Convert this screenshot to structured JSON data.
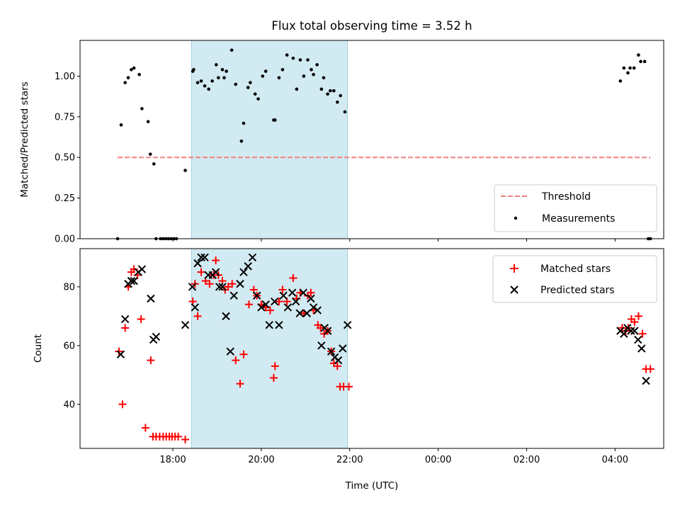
{
  "chart_data": {
    "type": "scatter",
    "title": "Flux total observing time = 3.52 h",
    "xlabel": "Time (UTC)",
    "x_tick_labels": [
      "18:00",
      "20:00",
      "22:00",
      "00:00",
      "02:00",
      "04:00"
    ],
    "x_ticks_hours": [
      18,
      20,
      22,
      24,
      26,
      28
    ],
    "x_unit": "hours UTC",
    "xlim": [
      15.9,
      29.1
    ],
    "shaded_span": [
      18.42,
      21.95
    ],
    "shade_color": "#add8e6",
    "panels": [
      {
        "ylabel": "Matched/Predicted stars",
        "ylim": [
          0,
          1.22
        ],
        "y_ticks": [
          0.0,
          0.25,
          0.5,
          0.75,
          1.0
        ],
        "y_tick_labels": [
          "0.00",
          "0.25",
          "0.50",
          "0.75",
          "1.00"
        ],
        "legend_loc": "lower-right",
        "series": [
          {
            "name": "Threshold",
            "kind": "line",
            "style": "dashed",
            "color": "#f08080",
            "x": [
              16.75,
              28.8
            ],
            "y": [
              0.5,
              0.5
            ]
          },
          {
            "name": "Measurements",
            "kind": "dot",
            "color": "#000000",
            "x": [
              16.75,
              16.83,
              16.92,
              16.99,
              17.06,
              17.12,
              17.24,
              17.3,
              17.44,
              17.49,
              17.57,
              17.62,
              17.72,
              17.78,
              17.84,
              17.9,
              17.96,
              18.02,
              18.08,
              18.28,
              18.45,
              18.47,
              18.56,
              18.64,
              18.72,
              18.81,
              18.89,
              18.98,
              19.03,
              19.12,
              19.16,
              19.21,
              19.33,
              19.42,
              19.55,
              19.6,
              19.7,
              19.75,
              19.86,
              19.93,
              20.03,
              20.1,
              20.28,
              20.31,
              20.4,
              20.48,
              20.58,
              20.72,
              20.8,
              20.88,
              20.96,
              21.05,
              21.13,
              21.18,
              21.26,
              21.36,
              21.41,
              21.5,
              21.56,
              21.64,
              21.72,
              21.79,
              21.89,
              28.12,
              28.2,
              28.29,
              28.34,
              28.43,
              28.53,
              28.58,
              28.67,
              28.75,
              28.8
            ],
            "y": [
              0.0,
              0.7,
              0.96,
              0.99,
              1.04,
              1.05,
              1.01,
              0.8,
              0.72,
              0.52,
              0.46,
              0.0,
              0.0,
              0.0,
              0.0,
              0.0,
              0.0,
              0.0,
              0.0,
              0.42,
              1.03,
              1.04,
              0.96,
              0.97,
              0.94,
              0.92,
              0.97,
              1.07,
              0.99,
              1.04,
              0.99,
              1.03,
              1.16,
              0.95,
              0.6,
              0.71,
              0.93,
              0.96,
              0.89,
              0.86,
              1.0,
              1.03,
              0.73,
              0.73,
              0.99,
              1.04,
              1.13,
              1.11,
              0.92,
              1.1,
              1.0,
              1.1,
              1.04,
              1.01,
              1.07,
              0.92,
              0.99,
              0.89,
              0.91,
              0.91,
              0.84,
              0.88,
              0.78,
              0.97,
              1.05,
              1.02,
              1.05,
              1.05,
              1.13,
              1.09,
              1.09,
              0.0,
              0.0
            ]
          }
        ]
      },
      {
        "ylabel": "Count",
        "ylim": [
          25,
          93
        ],
        "y_ticks": [
          40,
          60,
          80
        ],
        "y_tick_labels": [
          "40",
          "60",
          "80"
        ],
        "legend_loc": "top-right",
        "series": [
          {
            "name": "Matched stars",
            "kind": "plus",
            "color": "#ff0000",
            "x": [
              16.78,
              16.86,
              16.92,
              16.99,
              17.06,
              17.12,
              17.2,
              17.28,
              17.38,
              17.5,
              17.55,
              17.62,
              17.7,
              17.78,
              17.85,
              17.92,
              17.98,
              18.05,
              18.12,
              18.28,
              18.45,
              18.5,
              18.56,
              18.64,
              18.74,
              18.83,
              18.92,
              18.97,
              19.03,
              19.12,
              19.18,
              19.25,
              19.34,
              19.42,
              19.52,
              19.6,
              19.72,
              19.83,
              19.9,
              20.0,
              20.1,
              20.2,
              20.28,
              20.31,
              20.4,
              20.48,
              20.58,
              20.72,
              20.8,
              20.88,
              20.96,
              21.05,
              21.12,
              21.18,
              21.28,
              21.34,
              21.42,
              21.5,
              21.58,
              21.64,
              21.72,
              21.78,
              21.86,
              21.98,
              28.16,
              28.24,
              28.3,
              28.37,
              28.44,
              28.53,
              28.62,
              28.7,
              28.8
            ],
            "y": [
              58,
              40,
              66,
              80,
              85,
              86,
              84,
              69,
              32,
              55,
              29,
              29,
              29,
              29,
              29,
              29,
              29,
              29,
              29,
              28,
              75,
              81,
              70,
              85,
              82,
              81,
              84,
              89,
              84,
              82,
              79,
              80,
              81,
              55,
              47,
              57,
              74,
              79,
              77,
              74,
              73,
              72,
              49,
              53,
              75,
              79,
              75,
              83,
              76,
              78,
              71,
              77,
              78,
              72,
              67,
              66,
              64,
              65,
              58,
              54,
              53,
              46,
              46,
              46,
              66,
              65,
              66,
              69,
              68,
              70,
              64,
              52,
              52
            ]
          },
          {
            "name": "Predicted stars",
            "kind": "cross",
            "color": "#000000",
            "x": [
              16.82,
              16.92,
              16.99,
              17.06,
              17.12,
              17.22,
              17.3,
              17.5,
              17.56,
              17.62,
              18.28,
              18.44,
              18.5,
              18.56,
              18.64,
              18.72,
              18.8,
              18.9,
              18.97,
              19.05,
              19.12,
              19.2,
              19.3,
              19.38,
              19.52,
              19.6,
              19.7,
              19.8,
              19.9,
              20.0,
              20.1,
              20.18,
              20.3,
              20.4,
              20.5,
              20.6,
              20.7,
              20.78,
              20.87,
              20.95,
              21.03,
              21.12,
              21.18,
              21.27,
              21.36,
              21.43,
              21.5,
              21.58,
              21.66,
              21.74,
              21.84,
              21.95,
              28.12,
              28.2,
              28.28,
              28.36,
              28.44,
              28.52,
              28.6,
              28.7
            ],
            "y": [
              57,
              69,
              81,
              82,
              82,
              85,
              86,
              76,
              62,
              63,
              67,
              80,
              73,
              88,
              90,
              90,
              84,
              84,
              85,
              80,
              80,
              70,
              58,
              77,
              81,
              85,
              87,
              90,
              77,
              73,
              74,
              67,
              75,
              67,
              77,
              73,
              78,
              75,
              71,
              78,
              71,
              76,
              73,
              72,
              60,
              66,
              65,
              58,
              56,
              55,
              59,
              67,
              65,
              64,
              66,
              65,
              65,
              62,
              59,
              48
            ]
          }
        ]
      }
    ]
  }
}
